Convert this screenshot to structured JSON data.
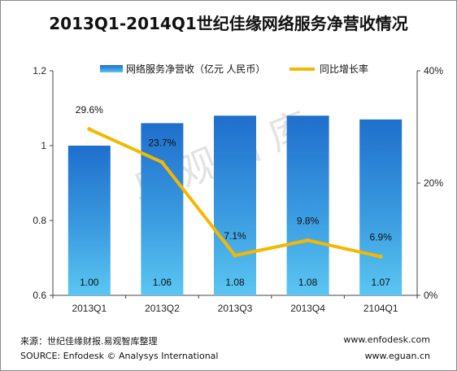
{
  "title": "2013Q1-2014Q1世纪佳缘网络服务净营收情况",
  "watermark": "易观智库",
  "chart_data": {
    "type": "bar",
    "categories": [
      "2013Q1",
      "2013Q2",
      "2013Q3",
      "2013Q4",
      "2104Q1"
    ],
    "series": [
      {
        "name": "网络服务净营收（亿元 人民币）",
        "axis": "left",
        "kind": "bar",
        "values": [
          1.0,
          1.06,
          1.08,
          1.08,
          1.07
        ],
        "labels": [
          "1.00",
          "1.06",
          "1.08",
          "1.08",
          "1.07"
        ],
        "color": "#2b7fd6"
      },
      {
        "name": "同比增长率",
        "axis": "right",
        "kind": "line",
        "values": [
          29.6,
          23.7,
          7.1,
          9.8,
          6.9
        ],
        "labels": [
          "29.6%",
          "23.7%",
          "7.1%",
          "9.8%",
          "6.9%"
        ],
        "color": "#f5b800"
      }
    ],
    "y_left": {
      "min": 0.6,
      "max": 1.2,
      "ticks": [
        0.6,
        0.8,
        1,
        1.2
      ],
      "tick_labels": [
        "0.6",
        "0.8",
        "1",
        "1.2"
      ]
    },
    "y_right": {
      "min": 0,
      "max": 40,
      "ticks": [
        0,
        20,
        40
      ],
      "tick_labels": [
        "0%",
        "20%",
        "40%"
      ]
    },
    "legend_position": "top",
    "grid": false
  },
  "footer": {
    "source_cn": "来源：世纪佳缘财报.易观智库整理",
    "source_en": "SOURCE: Enfodesk © Analysys International",
    "url1": "www.enfodesk.com",
    "url2": "www.eguan.cn"
  }
}
